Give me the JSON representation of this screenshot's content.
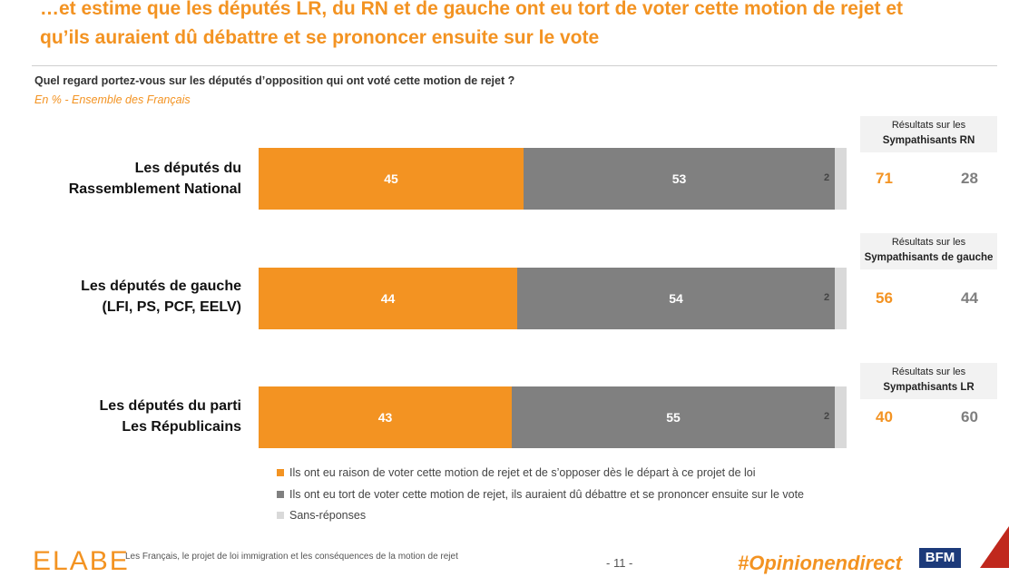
{
  "title": {
    "line1": "…et estime que les députés LR, du RN et de gauche ont eu tort de voter cette motion de rejet et",
    "line2": "qu’ils auraient dû débattre et se prononcer ensuite sur le vote"
  },
  "question": "Quel regard portez-vous sur les députés d’opposition qui ont voté cette motion de rejet ?",
  "subtitle": "En % - Ensemble des Français",
  "chart_data": {
    "type": "bar",
    "orientation": "horizontal-stacked-100",
    "categories": [
      [
        "Les députés du",
        "Rassemblement National"
      ],
      [
        "Les députés de gauche",
        "(LFI, PS, PCF, EELV)"
      ],
      [
        "Les députés du parti",
        "Les Républicains"
      ]
    ],
    "series": [
      {
        "name": "Ils ont eu raison de voter cette motion de rejet et de s’opposer dès le départ à ce projet de loi",
        "color": "#f39322",
        "values": [
          45,
          44,
          43
        ]
      },
      {
        "name": "Ils ont eu tort de voter cette motion de rejet, ils auraient dû débattre et se prononcer ensuite sur le vote",
        "color": "#808080",
        "values": [
          53,
          54,
          55
        ]
      },
      {
        "name": "Sans-réponses",
        "color": "#d9d9d9",
        "values": [
          2,
          2,
          2
        ]
      }
    ],
    "sympathisants": [
      {
        "header": "Résultats sur les",
        "group": "Sympathisants RN",
        "raison": 71,
        "tort": 28
      },
      {
        "header": "Résultats sur les",
        "group": "Sympathisants de gauche",
        "raison": 56,
        "tort": 44
      },
      {
        "header": "Résultats sur les",
        "group": "Sympathisants LR",
        "raison": 40,
        "tort": 60
      }
    ]
  },
  "footer": {
    "logo": "ELABE",
    "text": "Les Français, le projet de loi immigration et les conséquences de la motion de rejet",
    "page": "- 11 -",
    "hashtag": "#Opinionendirect",
    "channel": "BFM"
  },
  "colors": {
    "accent": "#f39322",
    "grey": "#808080",
    "light": "#d9d9d9"
  }
}
